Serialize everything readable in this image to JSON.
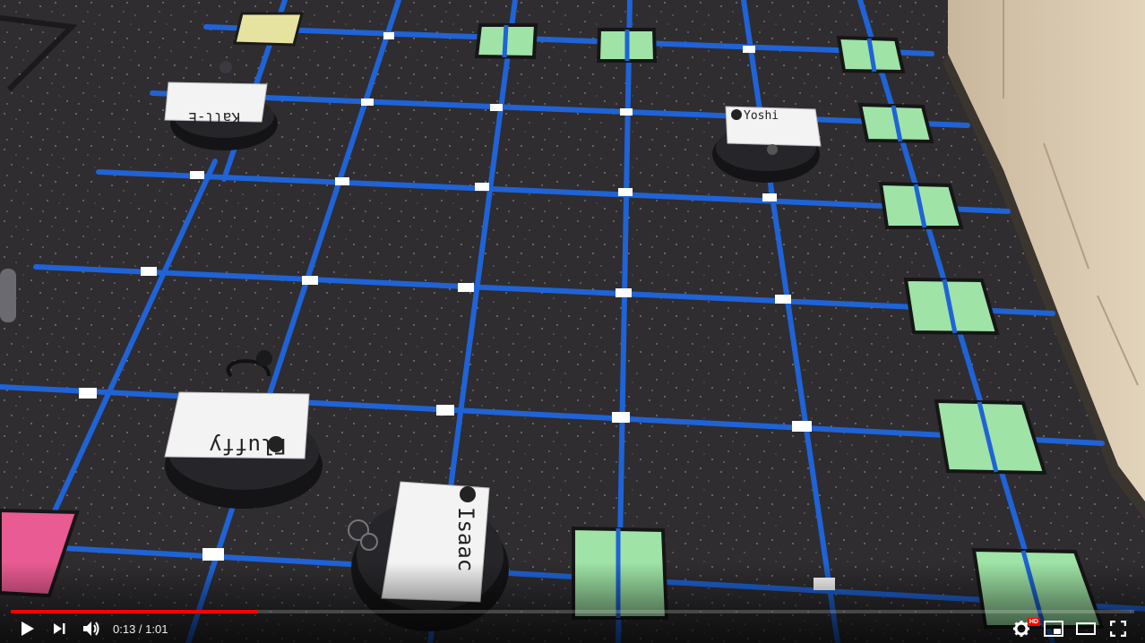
{
  "video": {
    "played_fraction": 0.22,
    "loaded_fraction": 0.22,
    "current_time": "0:13",
    "separator": " / ",
    "duration": "1:01",
    "hd_badge": "HD"
  },
  "controls": {
    "play_icon": "play-icon",
    "next_icon": "next-icon",
    "volume_icon": "volume-icon",
    "settings_icon": "gear-icon",
    "miniplayer_icon": "miniplayer-icon",
    "theater_icon": "theater-icon",
    "fullscreen_icon": "fullscreen-icon"
  },
  "scene": {
    "robots": [
      {
        "name": "Kall-E"
      },
      {
        "name": "Yoshi"
      },
      {
        "name": "Fluffy"
      },
      {
        "name": "Isaac"
      }
    ],
    "colors": {
      "floor": "#2f2d30",
      "tape": "#1f63d6",
      "green_tile": "#9fe3a6",
      "yellow_tile": "#e6e3a0",
      "pink_tile": "#e95b93",
      "progress_played": "#ff0000"
    }
  }
}
